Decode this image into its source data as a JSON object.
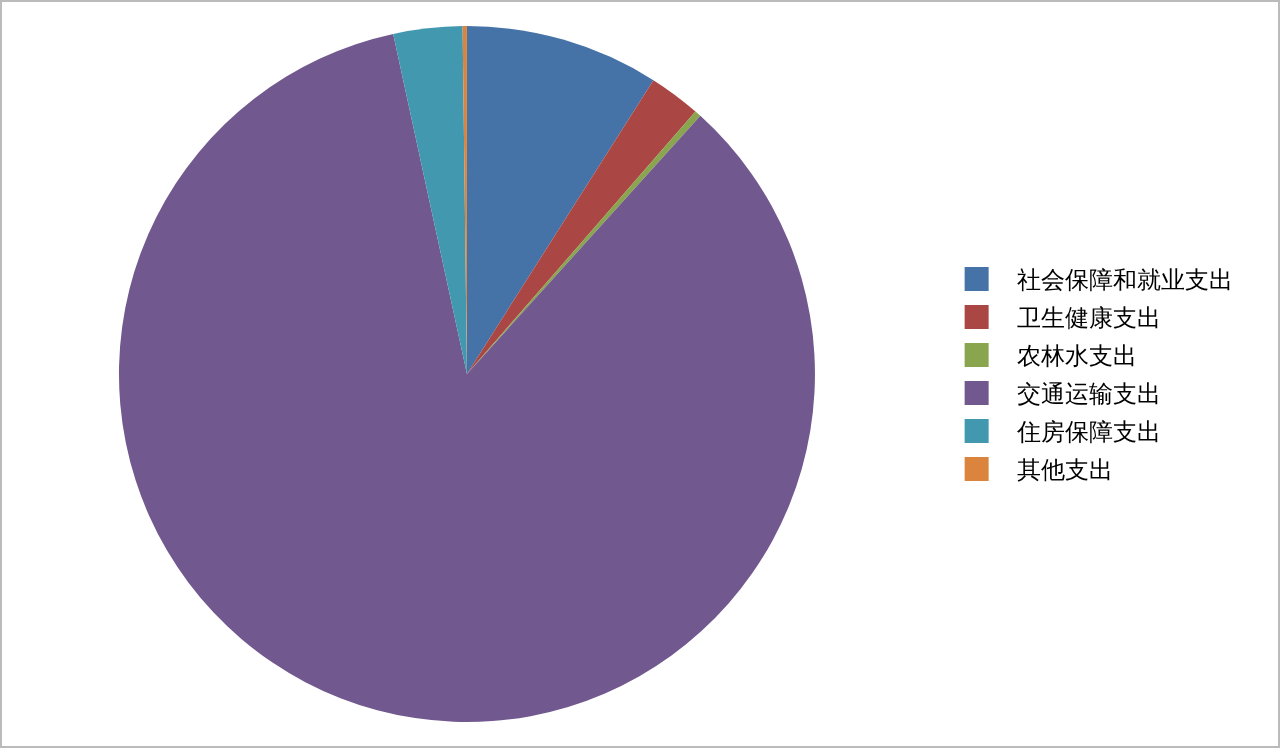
{
  "chart_data": {
    "type": "pie",
    "categories": [
      "社会保障和就业支出",
      "卫生健康支出",
      "农林水支出",
      "交通运输支出",
      "住房保障支出",
      "其他支出"
    ],
    "values": [
      9,
      2.4,
      0.3,
      84.9,
      3.2,
      0.2
    ],
    "colors": [
      "#4572a7",
      "#aa4643",
      "#89a54e",
      "#71588f",
      "#4198af",
      "#db843d"
    ],
    "legend": "right"
  }
}
